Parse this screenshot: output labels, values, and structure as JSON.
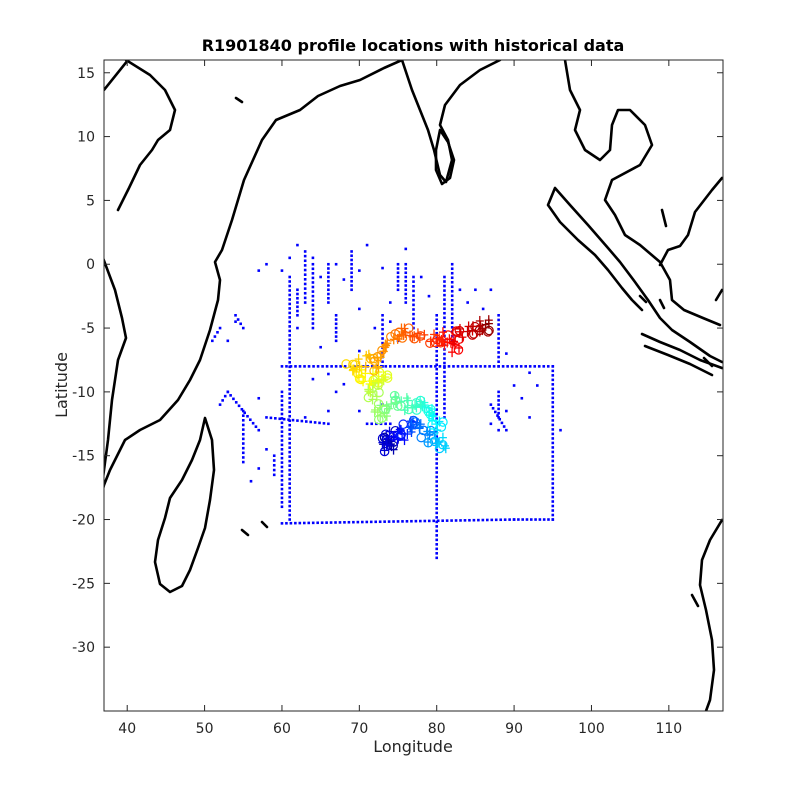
{
  "chart_data": {
    "type": "scatter",
    "title": "R1901840 profile locations with historical data",
    "xlabel": "Longitude",
    "ylabel": "Latitude",
    "xlim": [
      37,
      117
    ],
    "ylim": [
      -35,
      16
    ],
    "xticks": [
      40,
      50,
      60,
      70,
      80,
      90,
      100,
      110
    ],
    "yticks": [
      15,
      10,
      5,
      0,
      -5,
      -10,
      -15,
      -20,
      -25,
      -30
    ],
    "xtick_labels": [
      "40",
      "50",
      "60",
      "70",
      "80",
      "90",
      "100",
      "110"
    ],
    "ytick_labels": [
      "15",
      "10",
      "5",
      "0",
      "-5",
      "-10",
      "-15",
      "-20",
      "-25",
      "-30"
    ],
    "grid": false,
    "colors": {
      "historical": "#0000ff",
      "coast": "#000000",
      "profile_colormap": [
        "#00008f",
        "#0000ff",
        "#0080ff",
        "#00ffff",
        "#80ff80",
        "#ffff00",
        "#ff8000",
        "#ff0000",
        "#800000"
      ]
    },
    "historical_segments": [
      {
        "from": [
          60,
          -20.3
        ],
        "to": [
          90,
          -20
        ]
      },
      {
        "from": [
          90,
          -20
        ],
        "to": [
          95,
          -20
        ]
      },
      {
        "from": [
          95,
          -20
        ],
        "to": [
          95,
          -8
        ]
      },
      {
        "from": [
          60,
          -8
        ],
        "to": [
          95,
          -8
        ]
      },
      {
        "from": [
          80,
          -4
        ],
        "to": [
          80,
          -23
        ]
      },
      {
        "from": [
          81,
          -1
        ],
        "to": [
          81,
          -12
        ]
      },
      {
        "from": [
          82,
          0
        ],
        "to": [
          82,
          -6
        ]
      },
      {
        "from": [
          61,
          -1
        ],
        "to": [
          61,
          -20
        ]
      },
      {
        "from": [
          60,
          -10
        ],
        "to": [
          60,
          -19
        ]
      },
      {
        "from": [
          55,
          -11.5
        ],
        "to": [
          55,
          -15.5
        ]
      },
      {
        "from": [
          53,
          -10
        ],
        "to": [
          57,
          -13
        ]
      },
      {
        "from": [
          52,
          -11
        ],
        "to": [
          53,
          -10
        ]
      },
      {
        "from": [
          63,
          1
        ],
        "to": [
          63,
          -3
        ]
      },
      {
        "from": [
          64,
          0
        ],
        "to": [
          64,
          -5
        ]
      },
      {
        "from": [
          66,
          0
        ],
        "to": [
          66,
          -3
        ]
      },
      {
        "from": [
          75,
          0
        ],
        "to": [
          75,
          -2
        ]
      },
      {
        "from": [
          76,
          0
        ],
        "to": [
          76,
          -3
        ]
      },
      {
        "from": [
          77,
          -1
        ],
        "to": [
          77,
          -5
        ]
      },
      {
        "from": [
          88,
          -4
        ],
        "to": [
          88,
          -8
        ]
      },
      {
        "from": [
          73,
          -4
        ],
        "to": [
          73,
          -8
        ]
      },
      {
        "from": [
          69,
          1
        ],
        "to": [
          69,
          -2
        ]
      },
      {
        "from": [
          62,
          -2
        ],
        "to": [
          62,
          -4
        ]
      },
      {
        "from": [
          58,
          -12
        ],
        "to": [
          66,
          -12.5
        ]
      },
      {
        "from": [
          71,
          -12.5
        ],
        "to": [
          74,
          -12.5
        ]
      },
      {
        "from": [
          87,
          -11
        ],
        "to": [
          89,
          -13
        ]
      },
      {
        "from": [
          88,
          -10
        ],
        "to": [
          88,
          -12
        ]
      },
      {
        "from": [
          59,
          -15
        ],
        "to": [
          59,
          -16.5
        ]
      },
      {
        "from": [
          51,
          -6
        ],
        "to": [
          52,
          -5
        ]
      },
      {
        "from": [
          54,
          -4
        ],
        "to": [
          55,
          -5
        ]
      },
      {
        "from": [
          67,
          -4
        ],
        "to": [
          67,
          -6
        ]
      }
    ],
    "historical_points": [
      [
        57,
        -0.5
      ],
      [
        58,
        0
      ],
      [
        60,
        -0.5
      ],
      [
        61,
        0.5
      ],
      [
        62,
        1.5
      ],
      [
        64,
        0.5
      ],
      [
        65,
        -1
      ],
      [
        67,
        0
      ],
      [
        68,
        -1.2
      ],
      [
        70,
        -0.5
      ],
      [
        71,
        1.5
      ],
      [
        73,
        -0.3
      ],
      [
        74,
        -3
      ],
      [
        76,
        1.2
      ],
      [
        78,
        -1
      ],
      [
        79,
        -2.5
      ],
      [
        83,
        -2
      ],
      [
        84,
        -3
      ],
      [
        85,
        -2
      ],
      [
        86,
        -3.5
      ],
      [
        87,
        -2
      ],
      [
        89,
        -7
      ],
      [
        90,
        -9.5
      ],
      [
        92,
        -8.5
      ],
      [
        96,
        -13
      ],
      [
        70,
        -3.5
      ],
      [
        72,
        -5
      ],
      [
        74,
        -4.5
      ],
      [
        75,
        -6
      ],
      [
        62,
        -5
      ],
      [
        65,
        -6.5
      ],
      [
        64,
        -9
      ],
      [
        67,
        -10
      ],
      [
        66,
        -11.5
      ],
      [
        57,
        -10.5
      ],
      [
        56,
        -17
      ],
      [
        57,
        -16
      ],
      [
        54,
        -4.5
      ],
      [
        53,
        -6
      ],
      [
        58,
        -14.5
      ],
      [
        63,
        -12
      ],
      [
        70,
        -11.5
      ],
      [
        73,
        -11
      ],
      [
        87,
        -12.5
      ],
      [
        89,
        -11.5
      ],
      [
        88,
        -13
      ],
      [
        91,
        -10.5
      ],
      [
        92,
        -12
      ],
      [
        93,
        -9.5
      ],
      [
        70,
        -6.8
      ],
      [
        71,
        -7.2
      ],
      [
        66,
        -8.6
      ],
      [
        68,
        -9.4
      ]
    ],
    "profile_points": [
      [
        73.5,
        -13.8,
        0.0
      ],
      [
        74.2,
        -14.1,
        0.03
      ],
      [
        74.0,
        -13.4,
        0.05
      ],
      [
        73.2,
        -14.5,
        0.08
      ],
      [
        74.8,
        -13.0,
        0.1
      ],
      [
        75.2,
        -13.6,
        0.13
      ],
      [
        76.0,
        -12.8,
        0.16
      ],
      [
        77.0,
        -12.6,
        0.2
      ],
      [
        78.0,
        -12.9,
        0.23
      ],
      [
        79.0,
        -13.4,
        0.26
      ],
      [
        80.0,
        -13.6,
        0.3
      ],
      [
        81.0,
        -14.0,
        0.33
      ],
      [
        80.5,
        -12.5,
        0.36
      ],
      [
        79.5,
        -11.8,
        0.38
      ],
      [
        78.5,
        -11.5,
        0.4
      ],
      [
        77.5,
        -11.0,
        0.42
      ],
      [
        76.5,
        -11.3,
        0.44
      ],
      [
        75.5,
        -10.5,
        0.46
      ],
      [
        74.5,
        -10.8,
        0.48
      ],
      [
        73.5,
        -11.2,
        0.5
      ],
      [
        72.5,
        -11.8,
        0.52
      ],
      [
        72.0,
        -10.5,
        0.54
      ],
      [
        71.5,
        -9.8,
        0.56
      ],
      [
        72.5,
        -9.2,
        0.58
      ],
      [
        73.5,
        -8.8,
        0.6
      ],
      [
        71.0,
        -9.0,
        0.62
      ],
      [
        70.0,
        -8.5,
        0.64
      ],
      [
        69.0,
        -7.8,
        0.66
      ],
      [
        70.5,
        -7.5,
        0.68
      ],
      [
        72.0,
        -8.0,
        0.7
      ],
      [
        73.0,
        -7.0,
        0.72
      ],
      [
        74.0,
        -6.2,
        0.74
      ],
      [
        75.0,
        -5.6,
        0.76
      ],
      [
        76.0,
        -5.2,
        0.78
      ],
      [
        77.5,
        -5.6,
        0.8
      ],
      [
        79.0,
        -5.8,
        0.82
      ],
      [
        80.5,
        -6.2,
        0.84
      ],
      [
        81.5,
        -5.8,
        0.86
      ],
      [
        82.5,
        -6.4,
        0.88
      ],
      [
        83.0,
        -5.4,
        0.9
      ],
      [
        84.0,
        -5.0,
        0.92
      ],
      [
        85.0,
        -5.2,
        0.94
      ],
      [
        86.0,
        -4.8,
        0.96
      ],
      [
        86.8,
        -5.0,
        1.0
      ]
    ]
  }
}
